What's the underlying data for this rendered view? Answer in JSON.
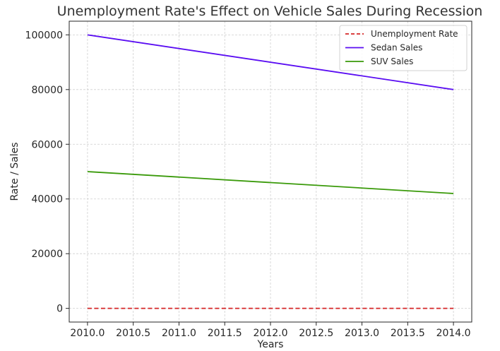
{
  "chart_data": {
    "type": "line",
    "title": "Unemployment Rate's Effect on Vehicle Sales During Recession",
    "xlabel": "Years",
    "ylabel": "Rate / Sales",
    "x": [
      2010.0,
      2014.0
    ],
    "xlim": [
      2009.8,
      2014.2
    ],
    "ylim": [
      -5000,
      105000
    ],
    "xticks": [
      2010.0,
      2010.5,
      2011.0,
      2011.5,
      2012.0,
      2012.5,
      2013.0,
      2013.5,
      2014.0
    ],
    "xtick_labels": [
      "2010.0",
      "2010.5",
      "2011.0",
      "2011.5",
      "2012.0",
      "2012.5",
      "2013.0",
      "2013.5",
      "2014.0"
    ],
    "yticks": [
      0,
      20000,
      40000,
      60000,
      80000,
      100000
    ],
    "ytick_labels": [
      "0",
      "20000",
      "40000",
      "60000",
      "80000",
      "100000"
    ],
    "grid": true,
    "legend_position": "top-right",
    "series": [
      {
        "name": "Unemployment Rate",
        "values": [
          5,
          10
        ],
        "color": "#d62728",
        "style": "dashed"
      },
      {
        "name": "Sedan Sales",
        "values": [
          100000,
          80000
        ],
        "color": "#5a0df2",
        "style": "solid"
      },
      {
        "name": "SUV Sales",
        "values": [
          50000,
          42000
        ],
        "color": "#3a9a0a",
        "style": "solid"
      }
    ]
  }
}
